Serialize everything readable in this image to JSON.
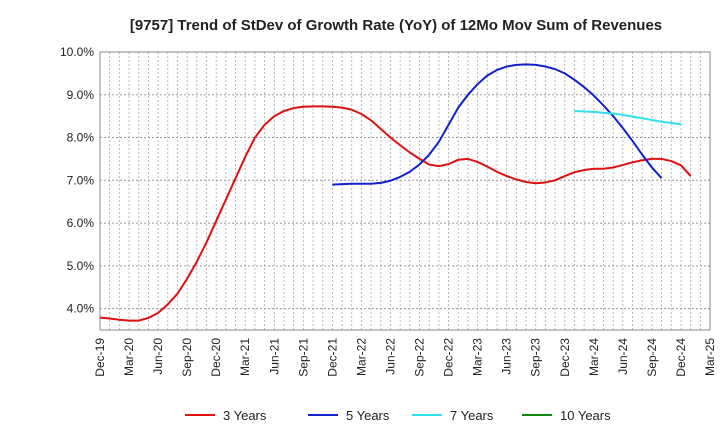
{
  "chart_data": {
    "type": "line",
    "title": "[9757]  Trend of StDev of Growth Rate (YoY) of 12Mo Mov Sum of Revenues",
    "xlabel": "",
    "ylabel": "",
    "ylim": [
      3.5,
      10.0
    ],
    "yticks": [
      4.0,
      5.0,
      6.0,
      7.0,
      8.0,
      9.0,
      10.0
    ],
    "ytick_labels": [
      "4.0%",
      "5.0%",
      "6.0%",
      "7.0%",
      "8.0%",
      "9.0%",
      "10.0%"
    ],
    "x_start": "Dec-19",
    "months_total": 63,
    "x_tick_labels": [
      "Dec-19",
      "Mar-20",
      "Jun-20",
      "Sep-20",
      "Dec-20",
      "Mar-21",
      "Jun-21",
      "Sep-21",
      "Dec-21",
      "Mar-22",
      "Jun-22",
      "Sep-22",
      "Dec-22",
      "Mar-23",
      "Jun-23",
      "Sep-23",
      "Dec-23",
      "Mar-24",
      "Jun-24",
      "Sep-24",
      "Dec-24",
      "Mar-25"
    ],
    "grid": true,
    "legend_position": "bottom",
    "series": [
      {
        "name": "3 Years",
        "color": "#dd1111",
        "start_index": 0,
        "values": [
          3.79,
          3.77,
          3.74,
          3.72,
          3.72,
          3.78,
          3.9,
          4.1,
          4.35,
          4.7,
          5.1,
          5.55,
          6.05,
          6.55,
          7.05,
          7.55,
          8.0,
          8.3,
          8.5,
          8.62,
          8.69,
          8.72,
          8.73,
          8.73,
          8.72,
          8.7,
          8.65,
          8.55,
          8.4,
          8.2,
          8.0,
          7.82,
          7.65,
          7.5,
          7.37,
          7.33,
          7.38,
          7.48,
          7.5,
          7.43,
          7.32,
          7.2,
          7.1,
          7.02,
          6.96,
          6.93,
          6.95,
          7.0,
          7.1,
          7.19,
          7.24,
          7.27,
          7.27,
          7.3,
          7.36,
          7.42,
          7.47,
          7.5,
          7.5,
          7.45,
          7.35,
          7.1
        ]
      },
      {
        "name": "5 Years",
        "color": "#1122cc",
        "start_index": 24,
        "values": [
          6.9,
          6.91,
          6.92,
          6.92,
          6.92,
          6.94,
          6.99,
          7.08,
          7.2,
          7.37,
          7.6,
          7.9,
          8.3,
          8.7,
          9.0,
          9.25,
          9.45,
          9.58,
          9.66,
          9.7,
          9.71,
          9.7,
          9.66,
          9.6,
          9.5,
          9.35,
          9.18,
          8.98,
          8.75,
          8.5,
          8.22,
          7.92,
          7.6,
          7.3,
          7.05
        ]
      },
      {
        "name": "7 Years",
        "color": "#33e0f0",
        "start_index": 49,
        "values": [
          8.62,
          8.61,
          8.6,
          8.58,
          8.56,
          8.53,
          8.49,
          8.45,
          8.41,
          8.37,
          8.34,
          8.31
        ]
      },
      {
        "name": "10 Years",
        "color": "#118811",
        "start_index": 0,
        "values": []
      }
    ]
  }
}
